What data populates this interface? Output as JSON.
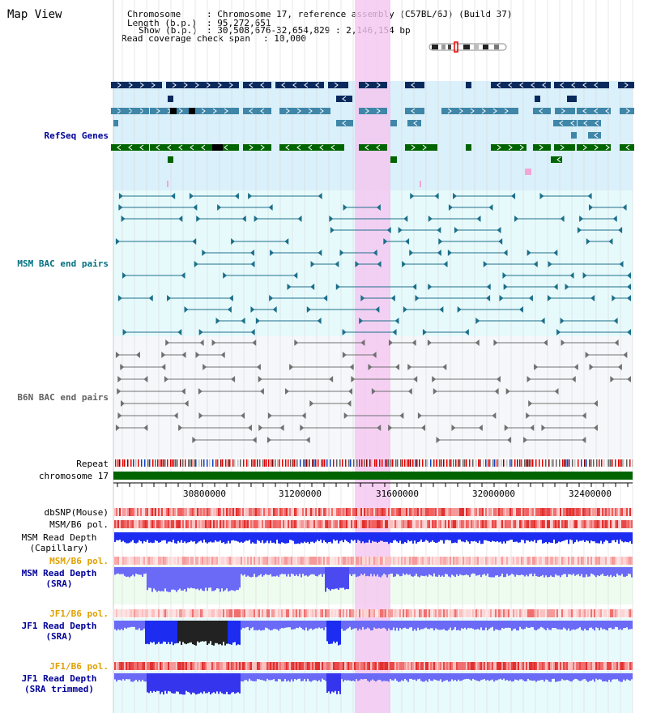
{
  "view": {
    "title": "Map View"
  },
  "header": {
    "chromosome_label": "Chromosome",
    "chromosome_value": ": Chromosome 17, reference assembly (C57BL/6J) (Build 37)",
    "length_label": "Length (b.p.)",
    "length_value": ": 95,272,651",
    "show_label": "Show (b.p.)",
    "show_value": ": 30,508,676-32,654,829 : 2,146,154 bp",
    "coverage_label": "Read coverage check span",
    "coverage_value": ": 10,000"
  },
  "tracks": {
    "refseq": "RefSeq Genes",
    "msm_bac": "MSM BAC end pairs",
    "b6n_bac": "B6N BAC end pairs",
    "repeat": "Repeat",
    "chromosome": "chromosome 17",
    "dbsnp": "dbSNP(Mouse)",
    "msm_b6_pol_1": "MSM/B6 pol.",
    "msm_depth_cap_1": "MSM Read Depth",
    "msm_depth_cap_2": "(Capillary)",
    "msm_b6_pol_2": "MSM/B6 pol.",
    "msm_depth_sra_1": "MSM Read Depth",
    "msm_depth_sra_2": "(SRA)",
    "jf1_b6_pol_1": "JF1/B6 pol.",
    "jf1_depth_sra_1": "JF1 Read Depth",
    "jf1_depth_sra_2": "(SRA)",
    "jf1_b6_pol_2": "JF1/B6 pol.",
    "jf1_depth_trim_1": "JF1 Read Depth",
    "jf1_depth_trim_2": "(SRA trimmed)"
  },
  "axis": {
    "ticks": [
      "30800000",
      "31200000",
      "31600000",
      "32000000",
      "32400000"
    ]
  },
  "colors": {
    "highlight": "#f5c6f0",
    "refseq_bg": "#daf0fa",
    "msm_bg": "#e6fafc",
    "b6n_bg": "#f5f7fa",
    "navy": "#0a2a5e",
    "steel": "#3f86a8",
    "green": "#006400",
    "msm_label": "#007080",
    "label_blue": "#000099",
    "label_orange": "#e0a000",
    "label_gray": "#606060"
  }
}
